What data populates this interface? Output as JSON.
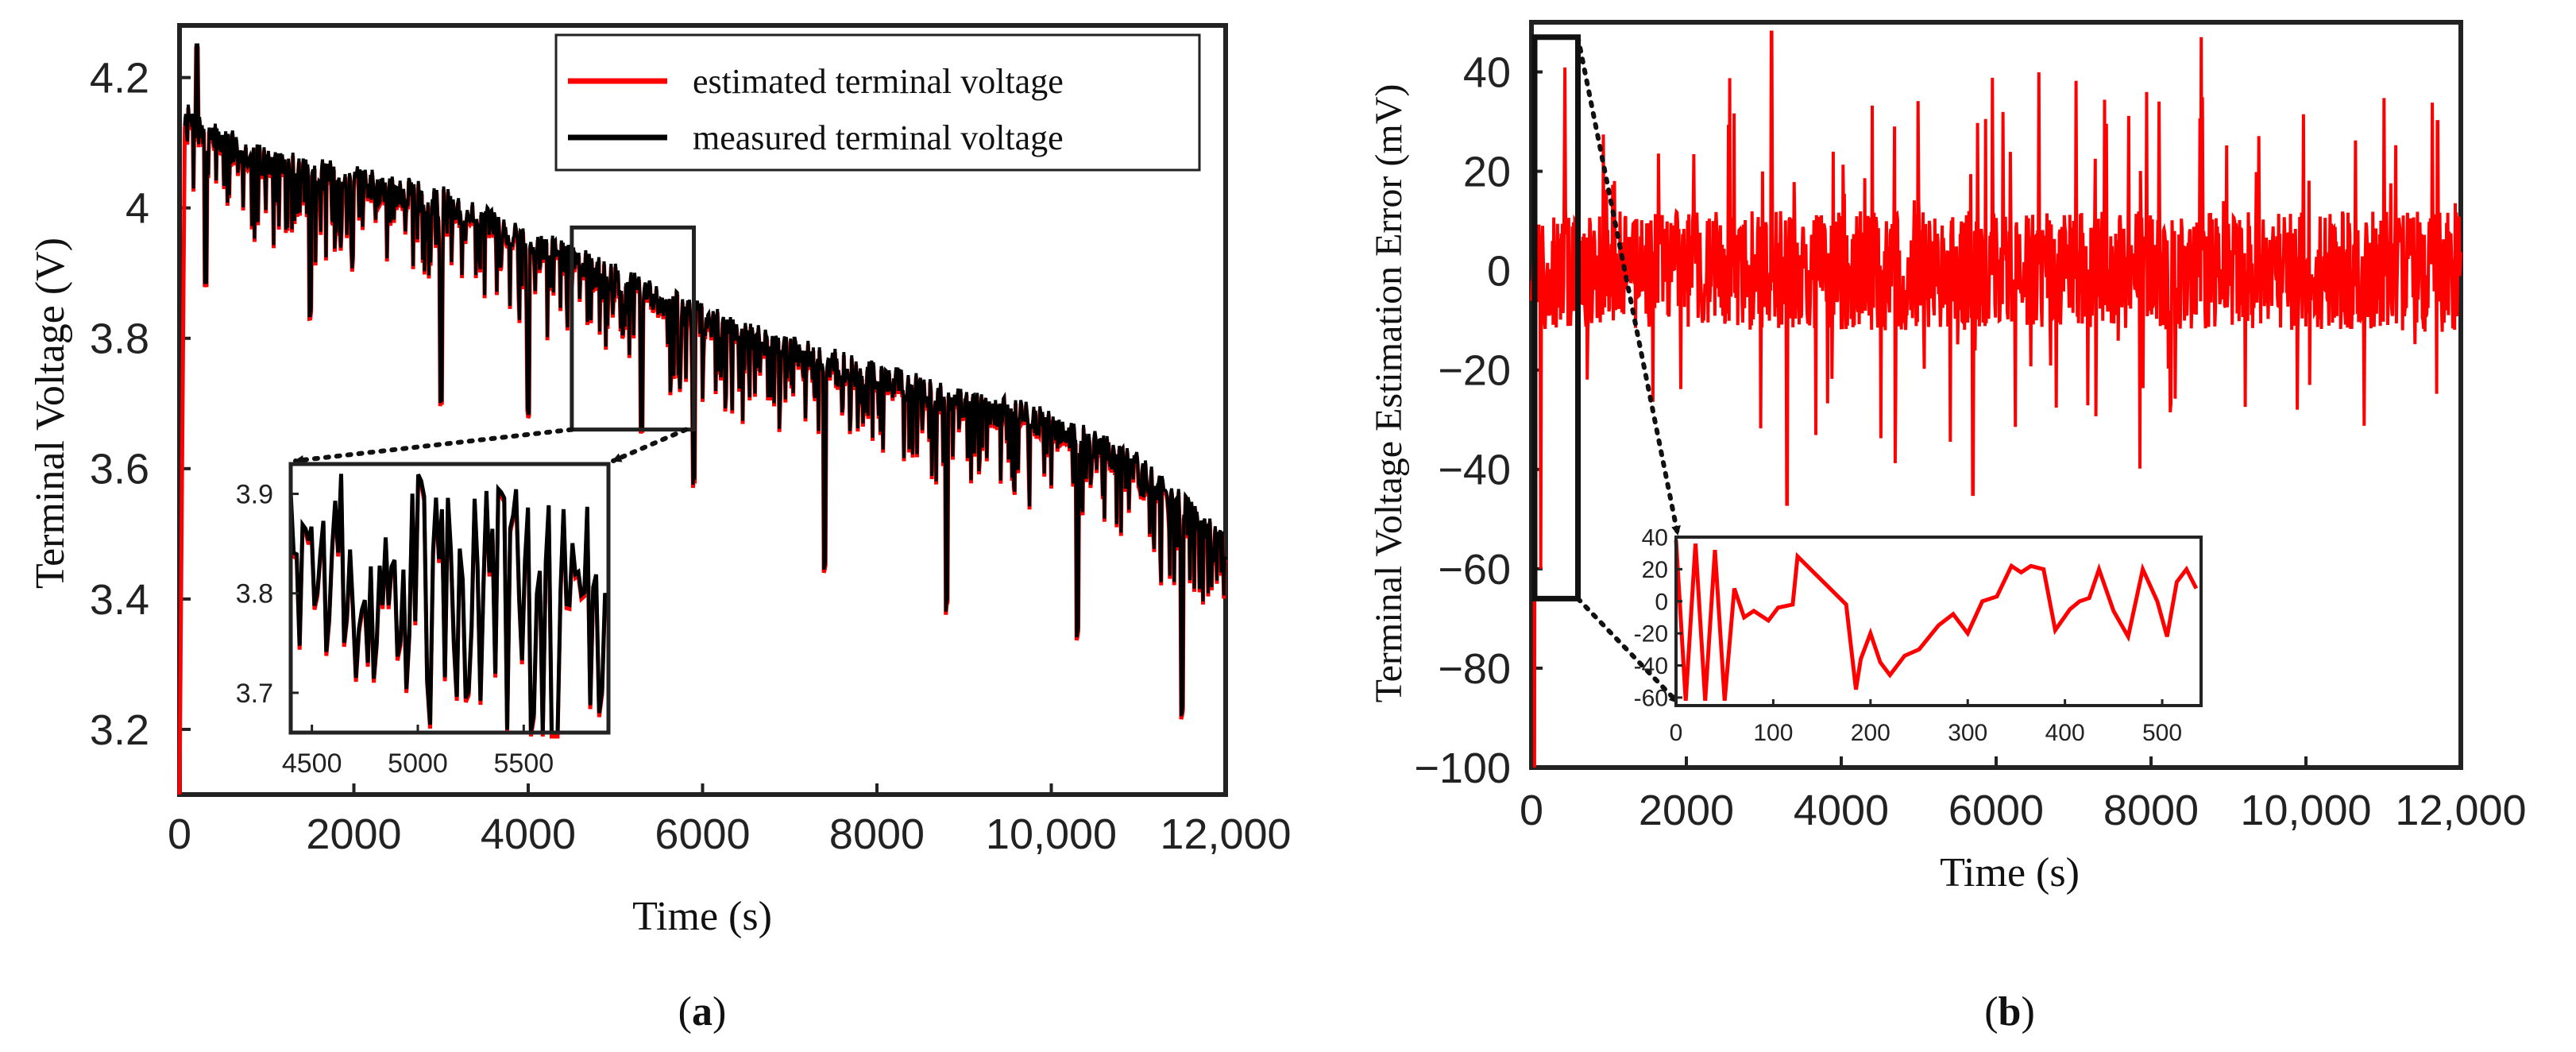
{
  "colors": {
    "estimated": "#ff0000",
    "measured": "#000000",
    "error": "#ff0000",
    "frame": "#222222"
  },
  "chart_data": [
    {
      "id": "a",
      "type": "line",
      "caption_open": "(",
      "caption_letter": "a",
      "caption_close": ")",
      "xlabel": "Time  (s)",
      "ylabel": "Terminal Voltage  (V)",
      "xlim": [
        0,
        12000
      ],
      "ylim": [
        3.1,
        4.28
      ],
      "xticks": [
        0,
        2000,
        4000,
        6000,
        8000,
        10000,
        12000
      ],
      "xtick_labels": [
        "0",
        "2000",
        "4000",
        "6000",
        "8000",
        "10,000",
        "12,000"
      ],
      "yticks": [
        3.2,
        3.4,
        3.6,
        3.8,
        4.0,
        4.2
      ],
      "ytick_labels": [
        "3.2",
        "3.4",
        "3.6",
        "3.8",
        "4",
        "4.2"
      ],
      "legend": {
        "position": "top-right",
        "entries": [
          "estimated terminal voltage",
          "measured terminal voltage"
        ]
      },
      "series": [
        {
          "name": "estimated terminal voltage",
          "color": "#ff0000",
          "trend_x": [
            0,
            60,
            200,
            1000,
            2000,
            3000,
            4000,
            5000,
            6000,
            7000,
            8000,
            9000,
            10000,
            11000,
            12000
          ],
          "trend_y": [
            3.1,
            4.14,
            4.12,
            4.07,
            4.04,
            4.01,
            3.95,
            3.89,
            3.83,
            3.78,
            3.74,
            3.7,
            3.67,
            3.6,
            3.48
          ],
          "dip_events": [
            {
              "x": 300,
              "min": 3.88
            },
            {
              "x": 1500,
              "min": 3.83
            },
            {
              "x": 3000,
              "min": 3.7
            },
            {
              "x": 4000,
              "min": 3.68
            },
            {
              "x": 5300,
              "min": 3.65
            },
            {
              "x": 5900,
              "min": 3.57
            },
            {
              "x": 7400,
              "min": 3.44
            },
            {
              "x": 8800,
              "min": 3.38
            },
            {
              "x": 10300,
              "min": 3.34
            },
            {
              "x": 11500,
              "min": 3.22
            }
          ]
        },
        {
          "name": "measured terminal voltage",
          "color": "#000000",
          "trend_x": [
            60,
            200,
            1000,
            2000,
            3000,
            4000,
            5000,
            6000,
            7000,
            8000,
            9000,
            10000,
            11000,
            12000
          ],
          "trend_y": [
            4.14,
            4.12,
            4.07,
            4.04,
            4.01,
            3.95,
            3.89,
            3.83,
            3.78,
            3.74,
            3.7,
            3.67,
            3.6,
            3.48
          ],
          "peak": {
            "x": 200,
            "y": 4.25
          }
        }
      ],
      "zoom_box": {
        "x_range": [
          4500,
          5900
        ],
        "y_range": [
          3.66,
          3.97
        ]
      },
      "inset": {
        "xlim": [
          4400,
          5900
        ],
        "ylim": [
          3.66,
          3.93
        ],
        "xticks": [
          4500,
          5000,
          5500
        ],
        "xtick_labels": [
          "4500",
          "5000",
          "5500"
        ],
        "yticks": [
          3.7,
          3.8,
          3.9
        ],
        "ytick_labels": [
          "3.7",
          "3.8",
          "3.9"
        ]
      }
    },
    {
      "id": "b",
      "type": "line",
      "caption_open": "(",
      "caption_letter": "b",
      "caption_close": ")",
      "xlabel": "Time  (s)",
      "ylabel": "Terminal Voltage Estimation Error  (mV)",
      "xlim": [
        0,
        12000
      ],
      "ylim": [
        -100,
        50
      ],
      "xticks": [
        0,
        2000,
        4000,
        6000,
        8000,
        10000,
        12000
      ],
      "xtick_labels": [
        "0",
        "2000",
        "4000",
        "6000",
        "8000",
        "10,000",
        "12,000"
      ],
      "yticks": [
        -100,
        -80,
        -60,
        -40,
        -20,
        0,
        20,
        40
      ],
      "ytick_labels": [
        "−100",
        "−80",
        "−60",
        "−40",
        "−20",
        "0",
        "20",
        "40"
      ],
      "series": [
        {
          "name": "terminal voltage estimation error",
          "color": "#ff0000",
          "mean": 0,
          "noise_amplitude_mV": 12,
          "spikes": [
            {
              "x": 40,
              "y": -100
            },
            {
              "x": 120,
              "y": -60
            },
            {
              "x": 3100,
              "y": 48
            },
            {
              "x": 3300,
              "y": -47
            },
            {
              "x": 5700,
              "y": -45
            },
            {
              "x": 8650,
              "y": 47
            },
            {
              "x": 11700,
              "y": 30
            }
          ]
        }
      ],
      "zoom_box": {
        "x_range": [
          0,
          600
        ],
        "y_range": [
          -66,
          47
        ]
      },
      "inset": {
        "xlim": [
          0,
          540
        ],
        "ylim": [
          -65,
          40
        ],
        "xticks": [
          0,
          100,
          200,
          300,
          400,
          500
        ],
        "xtick_labels": [
          "0",
          "100",
          "200",
          "300",
          "400",
          "500"
        ],
        "yticks": [
          -60,
          -40,
          -20,
          0,
          20,
          40
        ],
        "ytick_labels": [
          "-60",
          "-40",
          "-20",
          "0",
          "20",
          "40"
        ],
        "points_x": [
          0,
          10,
          20,
          30,
          40,
          50,
          60,
          70,
          80,
          95,
          105,
          120,
          125,
          175,
          185,
          190,
          200,
          210,
          220,
          235,
          250,
          270,
          285,
          300,
          315,
          330,
          345,
          355,
          365,
          378,
          390,
          405,
          415,
          425,
          435,
          450,
          465,
          480,
          495,
          505,
          515,
          525,
          535
        ],
        "points_y": [
          38,
          -62,
          36,
          -62,
          32,
          -62,
          8,
          -10,
          -6,
          -12,
          -4,
          -2,
          28,
          -2,
          -55,
          -36,
          -20,
          -38,
          -46,
          -34,
          -30,
          -15,
          -8,
          -20,
          0,
          3,
          22,
          18,
          22,
          20,
          -18,
          -5,
          0,
          2,
          20,
          -6,
          -22,
          20,
          0,
          -22,
          12,
          20,
          8
        ]
      }
    }
  ]
}
